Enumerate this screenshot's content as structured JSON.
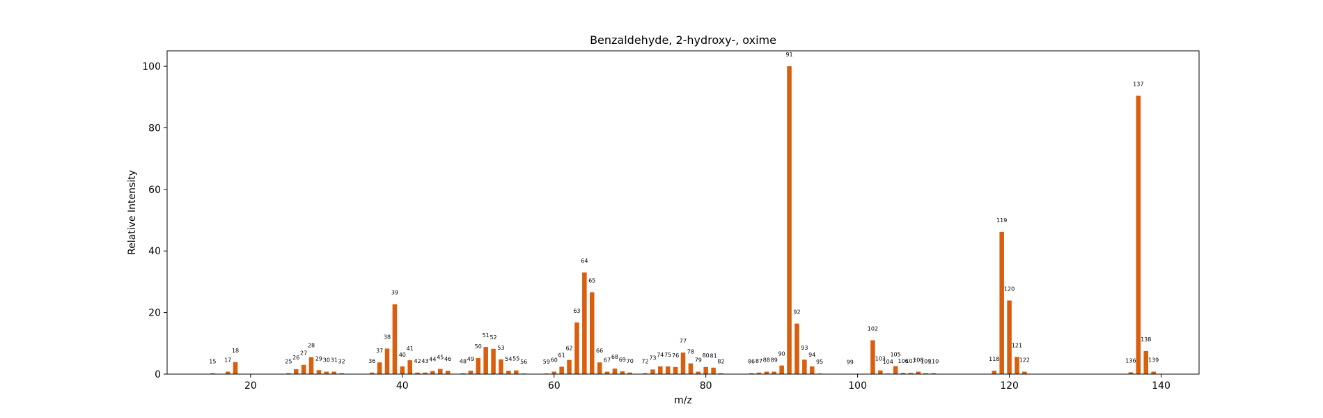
{
  "chart_data": {
    "type": "bar",
    "title": "Benzaldehyde, 2-hydroxy-, oxime",
    "xlabel": "m/z",
    "ylabel": "Relative Intensity",
    "xlim": [
      9,
      145
    ],
    "ylim": [
      0,
      105
    ],
    "xticks": [
      20,
      40,
      60,
      80,
      100,
      120,
      140
    ],
    "yticks": [
      0,
      20,
      40,
      60,
      80,
      100
    ],
    "grid": false,
    "bar_color": "#d95f0e",
    "x": [
      15,
      17,
      18,
      25,
      26,
      27,
      28,
      29,
      30,
      31,
      32,
      36,
      37,
      38,
      39,
      40,
      41,
      42,
      43,
      44,
      45,
      46,
      48,
      49,
      50,
      51,
      52,
      53,
      54,
      55,
      56,
      59,
      60,
      61,
      62,
      63,
      64,
      65,
      66,
      67,
      68,
      69,
      70,
      72,
      73,
      74,
      75,
      76,
      77,
      78,
      79,
      80,
      81,
      82,
      86,
      87,
      88,
      89,
      90,
      91,
      92,
      93,
      94,
      95,
      99,
      102,
      103,
      104,
      105,
      106,
      107,
      108,
      109,
      110,
      118,
      119,
      120,
      121,
      122,
      136,
      137,
      138,
      139
    ],
    "values": [
      0.3,
      0.8,
      3.9,
      0.3,
      1.6,
      3.0,
      5.5,
      1.3,
      0.8,
      0.8,
      0.3,
      0.5,
      3.8,
      8.3,
      22.7,
      2.5,
      4.5,
      0.5,
      0.5,
      1.0,
      1.7,
      1.1,
      0.3,
      1.1,
      5.2,
      8.8,
      8.2,
      4.8,
      1.1,
      1.2,
      0.2,
      0.2,
      0.8,
      2.4,
      4.6,
      16.8,
      33.0,
      26.6,
      3.8,
      0.8,
      1.8,
      0.9,
      0.5,
      0.3,
      1.5,
      2.5,
      2.5,
      2.3,
      7.0,
      3.5,
      0.8,
      2.3,
      2.1,
      0.3,
      0.3,
      0.5,
      0.8,
      0.8,
      2.8,
      100,
      16.4,
      4.7,
      2.5,
      0.2,
      0.1,
      11.0,
      1.2,
      0.2,
      2.6,
      0.4,
      0.4,
      0.8,
      0.3,
      0.3,
      1.1,
      46.2,
      23.9,
      5.6,
      0.8,
      0.6,
      90.4,
      7.5,
      0.8
    ]
  }
}
